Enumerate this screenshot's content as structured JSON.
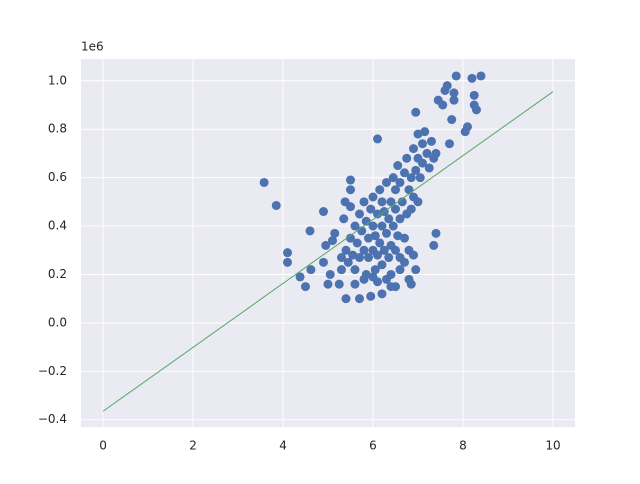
{
  "chart_data": {
    "type": "scatter",
    "y_offset_label": "1e6",
    "xlim": [
      -0.49,
      10.49
    ],
    "ylim": [
      -0.43,
      1.09
    ],
    "xticks": [
      0,
      2,
      4,
      6,
      8,
      10
    ],
    "yticks": [
      {
        "value": -0.4,
        "label": "−0.4"
      },
      {
        "value": -0.2,
        "label": "−0.2"
      },
      {
        "value": 0.0,
        "label": "0.0"
      },
      0.2,
      0.4,
      0.6,
      0.8,
      {
        "value": 1.0,
        "label": "1.0"
      }
    ],
    "grid": true,
    "background": "#eaeaf2",
    "series": [
      {
        "type": "scatter",
        "color": "#4c72b0",
        "x": [
          3.58,
          3.85,
          4.1,
          4.1,
          4.38,
          4.5,
          4.6,
          4.62,
          4.9,
          4.9,
          4.95,
          5.0,
          5.05,
          5.1,
          5.15,
          5.25,
          5.3,
          5.4,
          5.38,
          5.5,
          5.5,
          5.7,
          5.95,
          6.1,
          6.95,
          7.35,
          7.4,
          7.45,
          7.55,
          7.6,
          7.65,
          7.7,
          7.75,
          7.8,
          7.8,
          7.85,
          8.05,
          8.1,
          8.2,
          8.25,
          8.25,
          8.3,
          8.4,
          6.85,
          6.8,
          6.95,
          6.4,
          6.5,
          6.3,
          6.1,
          5.3,
          5.35,
          5.4,
          5.45,
          5.5,
          5.5,
          5.55,
          5.6,
          5.6,
          5.65,
          5.7,
          5.7,
          5.75,
          5.8,
          5.8,
          5.85,
          5.85,
          5.9,
          5.9,
          5.95,
          6.0,
          6.0,
          6.0,
          6.05,
          6.05,
          6.1,
          6.1,
          6.15,
          6.15,
          6.2,
          6.2,
          6.2,
          6.25,
          6.25,
          6.3,
          6.3,
          6.35,
          6.35,
          6.4,
          6.4,
          6.4,
          6.45,
          6.45,
          6.5,
          6.5,
          6.5,
          6.55,
          6.55,
          6.6,
          6.6,
          6.6,
          6.65,
          6.7,
          6.7,
          6.75,
          6.75,
          6.8,
          6.8,
          6.85,
          6.85,
          6.9,
          6.9,
          6.95,
          7.0,
          7.0,
          7.0,
          7.05,
          7.1,
          7.1,
          7.15,
          7.2,
          7.25,
          7.3,
          7.35,
          7.4,
          6.6,
          6.7,
          6.9,
          5.6,
          5.8,
          6.2,
          6.0
        ],
        "y": [
          0.58,
          0.485,
          0.29,
          0.25,
          0.19,
          0.15,
          0.38,
          0.22,
          0.46,
          0.25,
          0.32,
          0.16,
          0.2,
          0.34,
          0.37,
          0.16,
          0.22,
          0.1,
          0.5,
          0.59,
          0.55,
          0.1,
          0.11,
          0.76,
          0.87,
          0.32,
          0.37,
          0.92,
          0.9,
          0.96,
          0.98,
          0.74,
          0.84,
          0.95,
          0.92,
          1.02,
          0.79,
          0.81,
          1.01,
          0.94,
          0.9,
          0.88,
          1.02,
          0.16,
          0.18,
          0.22,
          0.15,
          0.15,
          0.18,
          0.17,
          0.27,
          0.43,
          0.3,
          0.25,
          0.35,
          0.48,
          0.28,
          0.4,
          0.22,
          0.33,
          0.45,
          0.27,
          0.38,
          0.3,
          0.5,
          0.2,
          0.42,
          0.35,
          0.27,
          0.47,
          0.3,
          0.4,
          0.52,
          0.22,
          0.36,
          0.45,
          0.28,
          0.55,
          0.33,
          0.4,
          0.5,
          0.24,
          0.3,
          0.46,
          0.58,
          0.37,
          0.27,
          0.43,
          0.5,
          0.32,
          0.2,
          0.6,
          0.4,
          0.47,
          0.3,
          0.55,
          0.65,
          0.36,
          0.43,
          0.27,
          0.58,
          0.5,
          0.62,
          0.35,
          0.45,
          0.68,
          0.55,
          0.3,
          0.6,
          0.47,
          0.72,
          0.52,
          0.63,
          0.78,
          0.5,
          0.68,
          0.6,
          0.74,
          0.66,
          0.79,
          0.7,
          0.64,
          0.75,
          0.68,
          0.7,
          0.22,
          0.25,
          0.28,
          0.16,
          0.18,
          0.12,
          0.19
        ]
      },
      {
        "type": "line",
        "color": "#55a868",
        "x": [
          0,
          10
        ],
        "y": [
          -0.365,
          0.955
        ]
      }
    ]
  }
}
